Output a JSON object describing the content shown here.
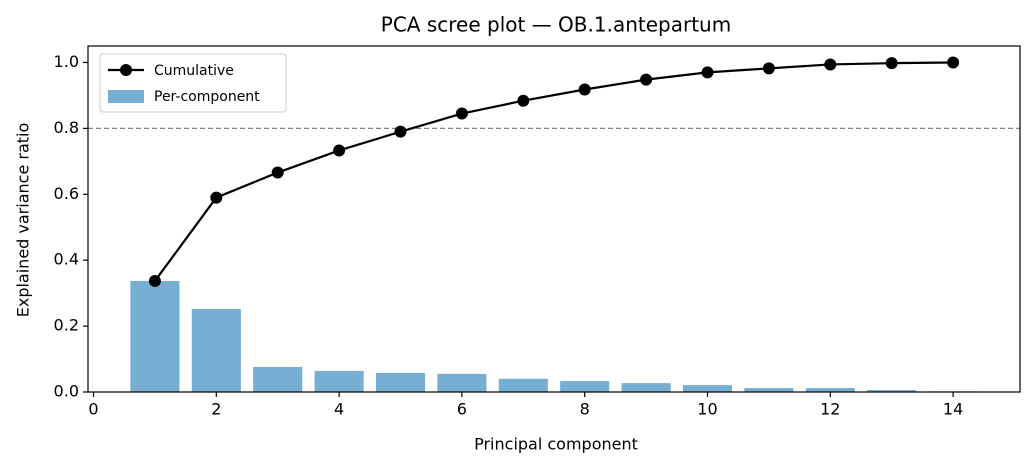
{
  "chart_data": {
    "type": "combo",
    "title": "PCA scree plot — OB.1.antepartum",
    "x_label": "Principal component",
    "y_label": "Explained variance ratio",
    "x": [
      1,
      2,
      3,
      4,
      5,
      6,
      7,
      8,
      9,
      10,
      11,
      12,
      13,
      14
    ],
    "series": [
      {
        "name": "Cumulative",
        "type": "line",
        "color": "#000000",
        "values": [
          0.337,
          0.59,
          0.666,
          0.733,
          0.79,
          0.845,
          0.884,
          0.918,
          0.948,
          0.97,
          0.982,
          0.994,
          0.998,
          1.0
        ]
      },
      {
        "name": "Per-component",
        "type": "bar",
        "color": "#77afd4",
        "values": [
          0.337,
          0.252,
          0.076,
          0.064,
          0.058,
          0.055,
          0.04,
          0.033,
          0.027,
          0.021,
          0.012,
          0.012,
          0.006,
          0.002
        ]
      }
    ],
    "threshold": 0.8,
    "xlim": [
      -0.09,
      15.09
    ],
    "xticks": [
      0,
      2,
      4,
      6,
      8,
      10,
      12,
      14
    ],
    "ylim": [
      0,
      1.05
    ],
    "yticks": [
      {
        "value": 0,
        "label": "0.0"
      },
      0.2,
      0.4,
      0.6,
      0.8,
      {
        "value": 1,
        "label": "1.0"
      }
    ],
    "legend": "upper left"
  }
}
